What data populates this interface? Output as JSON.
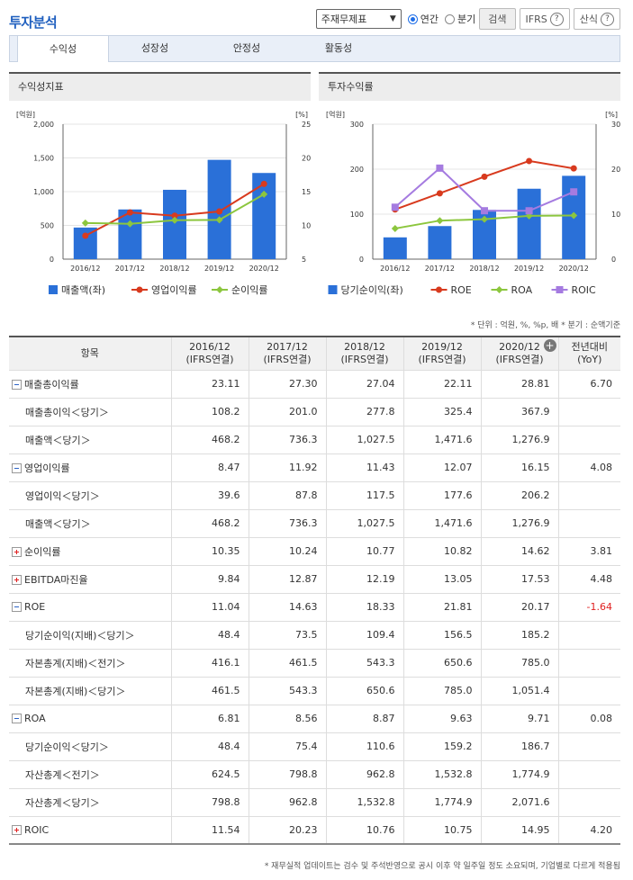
{
  "header": {
    "title": "투자분석",
    "select_value": "주재무제표",
    "radio_annual": "연간",
    "radio_quarter": "분기",
    "search_label": "검색",
    "ifrs_label": "IFRS",
    "formula_label": "산식"
  },
  "tabs": [
    {
      "label": "수익성"
    },
    {
      "label": "성장성"
    },
    {
      "label": "안정성"
    },
    {
      "label": "활동성"
    }
  ],
  "charts": {
    "left_title": "수익성지표",
    "right_title": "투자수익률"
  },
  "chart_data": [
    {
      "type": "bar",
      "title": "수익성지표",
      "left_unit": "[억원]",
      "right_unit": "[%]",
      "categories": [
        "2016/12",
        "2017/12",
        "2018/12",
        "2019/12",
        "2020/12"
      ],
      "left_ticks": [
        "0",
        "500",
        "1,000",
        "1,500",
        "2,000"
      ],
      "right_ticks": [
        "5",
        "10",
        "15",
        "20",
        "25"
      ],
      "ylim": [
        0,
        2000
      ],
      "y2lim": [
        5,
        25
      ],
      "bar_series": {
        "name": "매출액(좌)",
        "color": "#2a70d8",
        "values": [
          468.2,
          736.3,
          1027.5,
          1471.6,
          1276.9
        ]
      },
      "line_series": [
        {
          "name": "영업이익률",
          "color": "#d83a1e",
          "values": [
            8.47,
            11.92,
            11.43,
            12.07,
            16.15
          ]
        },
        {
          "name": "순이익률",
          "color": "#8cc63e",
          "values": [
            10.35,
            10.24,
            10.77,
            10.82,
            14.62
          ]
        }
      ],
      "legend": "bottom"
    },
    {
      "type": "bar",
      "title": "투자수익률",
      "left_unit": "[억원]",
      "right_unit": "[%]",
      "categories": [
        "2016/12",
        "2017/12",
        "2018/12",
        "2019/12",
        "2020/12"
      ],
      "left_ticks": [
        "0",
        "100",
        "200",
        "300"
      ],
      "right_ticks": [
        "0",
        "10",
        "20",
        "30"
      ],
      "ylim": [
        0,
        300
      ],
      "y2lim": [
        0,
        30
      ],
      "bar_series": {
        "name": "당기순이익(좌)",
        "color": "#2a70d8",
        "values": [
          48.4,
          73.5,
          109.4,
          156.5,
          185.2
        ]
      },
      "line_series": [
        {
          "name": "ROE",
          "color": "#d83a1e",
          "values": [
            11.04,
            14.63,
            18.33,
            21.81,
            20.17
          ]
        },
        {
          "name": "ROA",
          "color": "#8cc63e",
          "values": [
            6.81,
            8.56,
            8.87,
            9.63,
            9.71
          ]
        },
        {
          "name": "ROIC",
          "color": "#a57be0",
          "values": [
            11.54,
            20.23,
            10.76,
            10.75,
            14.95
          ]
        }
      ],
      "legend": "bottom"
    }
  ],
  "unit_note": "* 단위 : 억원, %, %p, 배   * 분기 : 순액기준",
  "table": {
    "headers": [
      {
        "l1": "항목",
        "l2": ""
      },
      {
        "l1": "2016/12",
        "l2": "(IFRS연결)"
      },
      {
        "l1": "2017/12",
        "l2": "(IFRS연결)"
      },
      {
        "l1": "2018/12",
        "l2": "(IFRS연결)"
      },
      {
        "l1": "2019/12",
        "l2": "(IFRS연결)"
      },
      {
        "l1": "2020/12",
        "l2": "(IFRS연결)"
      },
      {
        "l1": "전년대비",
        "l2": "(YoY)"
      }
    ],
    "rows": [
      {
        "label": "매출총이익률",
        "kind": "minus",
        "values": [
          "23.11",
          "27.30",
          "27.04",
          "22.11",
          "28.81",
          "6.70"
        ]
      },
      {
        "label": "매출총이익＜당기＞",
        "kind": "sub",
        "values": [
          "108.2",
          "201.0",
          "277.8",
          "325.4",
          "367.9",
          ""
        ]
      },
      {
        "label": "매출액＜당기＞",
        "kind": "sub",
        "values": [
          "468.2",
          "736.3",
          "1,027.5",
          "1,471.6",
          "1,276.9",
          ""
        ]
      },
      {
        "label": "영업이익률",
        "kind": "minus",
        "values": [
          "8.47",
          "11.92",
          "11.43",
          "12.07",
          "16.15",
          "4.08"
        ]
      },
      {
        "label": "영업이익＜당기＞",
        "kind": "sub",
        "values": [
          "39.6",
          "87.8",
          "117.5",
          "177.6",
          "206.2",
          ""
        ]
      },
      {
        "label": "매출액＜당기＞",
        "kind": "sub",
        "values": [
          "468.2",
          "736.3",
          "1,027.5",
          "1,471.6",
          "1,276.9",
          ""
        ]
      },
      {
        "label": "순이익률",
        "kind": "plus",
        "values": [
          "10.35",
          "10.24",
          "10.77",
          "10.82",
          "14.62",
          "3.81"
        ]
      },
      {
        "label": "EBITDA마진율",
        "kind": "plus",
        "values": [
          "9.84",
          "12.87",
          "12.19",
          "13.05",
          "17.53",
          "4.48"
        ]
      },
      {
        "label": "ROE",
        "kind": "minus",
        "values": [
          "11.04",
          "14.63",
          "18.33",
          "21.81",
          "20.17",
          "-1.64"
        ]
      },
      {
        "label": "당기순이익(지배)＜당기＞",
        "kind": "sub",
        "values": [
          "48.4",
          "73.5",
          "109.4",
          "156.5",
          "185.2",
          ""
        ]
      },
      {
        "label": "자본총계(지배)＜전기＞",
        "kind": "sub",
        "values": [
          "416.1",
          "461.5",
          "543.3",
          "650.6",
          "785.0",
          ""
        ]
      },
      {
        "label": "자본총계(지배)＜당기＞",
        "kind": "sub",
        "values": [
          "461.5",
          "543.3",
          "650.6",
          "785.0",
          "1,051.4",
          ""
        ]
      },
      {
        "label": "ROA",
        "kind": "minus",
        "values": [
          "6.81",
          "8.56",
          "8.87",
          "9.63",
          "9.71",
          "0.08"
        ]
      },
      {
        "label": "당기순이익＜당기＞",
        "kind": "sub",
        "values": [
          "48.4",
          "75.4",
          "110.6",
          "159.2",
          "186.7",
          ""
        ]
      },
      {
        "label": "자산총계＜전기＞",
        "kind": "sub",
        "values": [
          "624.5",
          "798.8",
          "962.8",
          "1,532.8",
          "1,774.9",
          ""
        ]
      },
      {
        "label": "자산총계＜당기＞",
        "kind": "sub",
        "values": [
          "798.8",
          "962.8",
          "1,532.8",
          "1,774.9",
          "2,071.6",
          ""
        ]
      },
      {
        "label": "ROIC",
        "kind": "plus",
        "values": [
          "11.54",
          "20.23",
          "10.76",
          "10.75",
          "14.95",
          "4.20"
        ]
      }
    ]
  },
  "footer_note": "* 재무실적 업데이트는 검수 및 주석반영으로 공시 이후 약 일주일 정도 소요되며, 기업별로 다르게 적용됨"
}
